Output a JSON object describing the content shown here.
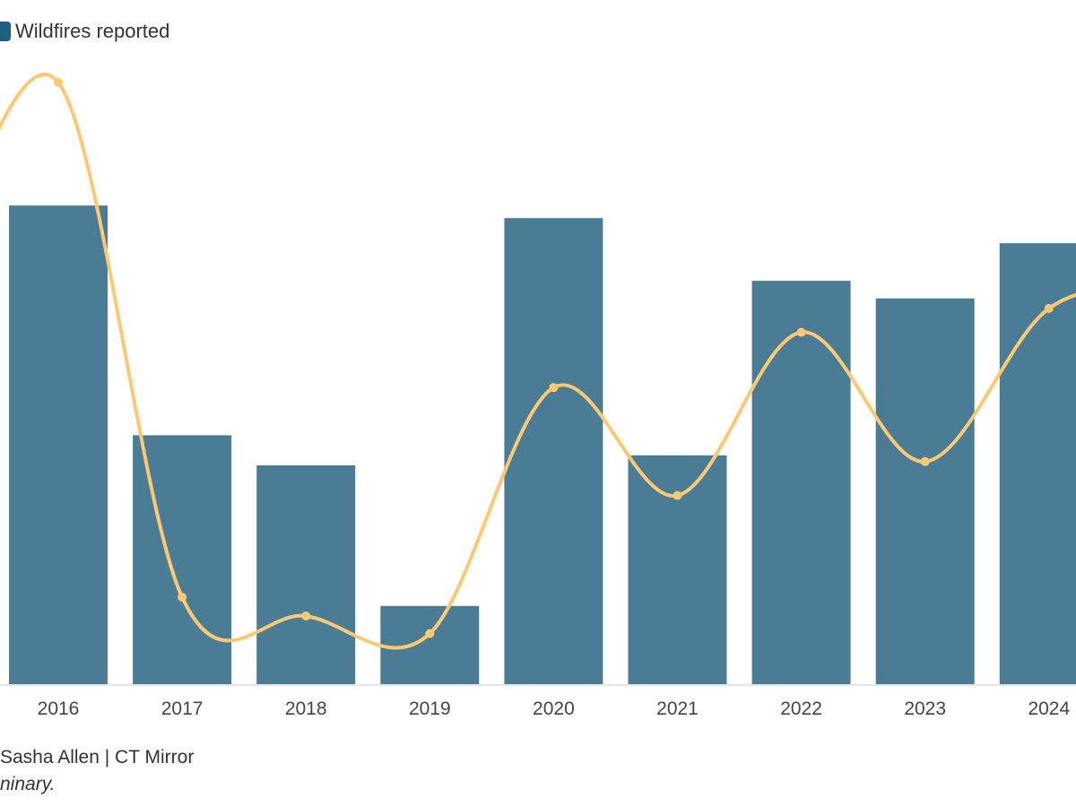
{
  "legend": {
    "bar_label": "Wildfires reported"
  },
  "chart_data": {
    "type": "bar",
    "categories": [
      "2016",
      "2017",
      "2018",
      "2019",
      "2020",
      "2021",
      "2022",
      "2023",
      "2024"
    ],
    "series": [
      {
        "name": "Wildfires reported",
        "kind": "bar",
        "color": "#4a7d95",
        "values": [
          382,
          199,
          175,
          63,
          372,
          183,
          322,
          308,
          352
        ]
      },
      {
        "kind": "line",
        "color": "#fcc874",
        "values": [
          480,
          70,
          55,
          41,
          237,
          151,
          281,
          178,
          300
        ]
      }
    ],
    "legend_position": "top-left",
    "grid": false,
    "ylim": [
      0,
      500
    ]
  },
  "footer": {
    "credit": "Sasha Allen | CT Mirror",
    "note": "ninary."
  }
}
